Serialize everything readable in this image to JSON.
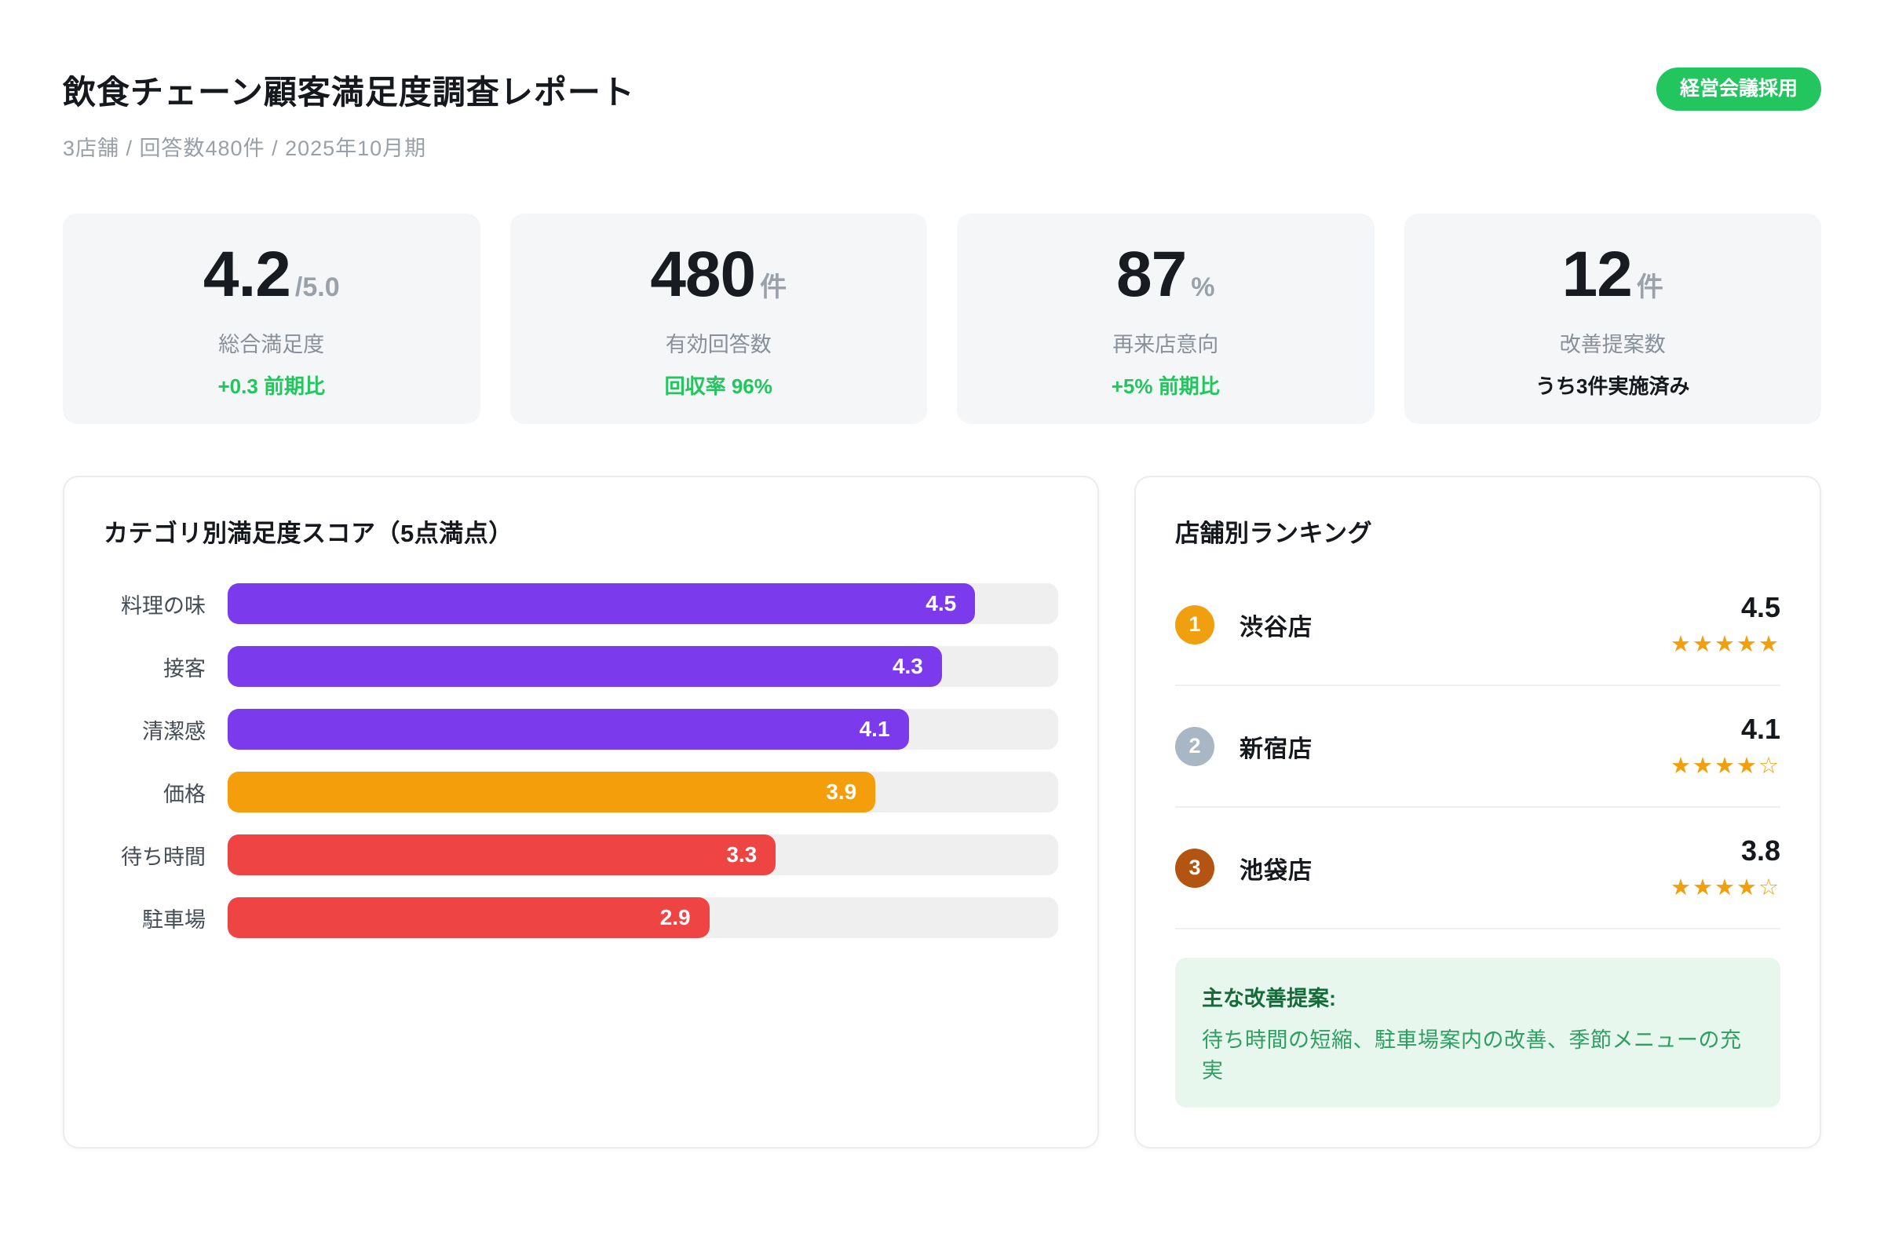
{
  "header": {
    "title": "飲食チェーン顧客満足度調査レポート",
    "subtitle": "3店舗 / 回答数480件 / 2025年10月期",
    "badge": "経営会議採用"
  },
  "kpis": [
    {
      "value": "4.2",
      "suffix": "/5.0",
      "label": "総合満足度",
      "note": "+0.3 前期比",
      "note_color": "#22c55e"
    },
    {
      "value": "480",
      "suffix": "件",
      "label": "有効回答数",
      "note": "回収率 96%",
      "note_color": "#22c55e"
    },
    {
      "value": "87",
      "suffix": "%",
      "label": "再来店意向",
      "note": "+5% 前期比",
      "note_color": "#22c55e"
    },
    {
      "value": "12",
      "suffix": "件",
      "label": "改善提案数",
      "note": "うち3件実施済み",
      "note_color": "#15181c"
    }
  ],
  "chart_data": {
    "type": "bar",
    "orientation": "horizontal",
    "title": "カテゴリ別満足度スコア（5点満点）",
    "categories": [
      "料理の味",
      "接客",
      "清潔感",
      "価格",
      "待ち時間",
      "駐車場"
    ],
    "values": [
      4.5,
      4.3,
      4.1,
      3.9,
      3.3,
      2.9
    ],
    "value_max": 5,
    "bar_colors": [
      "#7c3aed",
      "#7c3aed",
      "#7c3aed",
      "#f59e0b",
      "#ef4444",
      "#ef4444"
    ],
    "track_color": "#efefef",
    "legend": "none",
    "grid": false
  },
  "ranking": {
    "title": "店舗別ランキング",
    "items": [
      {
        "rank": "1",
        "name": "渋谷店",
        "score": "4.5",
        "stars": "★★★★★",
        "medal_color": "#f0a00e"
      },
      {
        "rank": "2",
        "name": "新宿店",
        "score": "4.1",
        "stars": "★★★★☆",
        "medal_color": "#a9b6c4"
      },
      {
        "rank": "3",
        "name": "池袋店",
        "score": "3.8",
        "stars": "★★★★☆",
        "medal_color": "#b45412"
      }
    ],
    "note": {
      "heading": "主な改善提案:",
      "body": "待ち時間の短縮、駐車場案内の改善、季節メニューの充実"
    }
  },
  "colors": {
    "badge_green": "#22c55e",
    "star_orange": "#f0a00e",
    "note_bg": "#e8f7ee"
  }
}
